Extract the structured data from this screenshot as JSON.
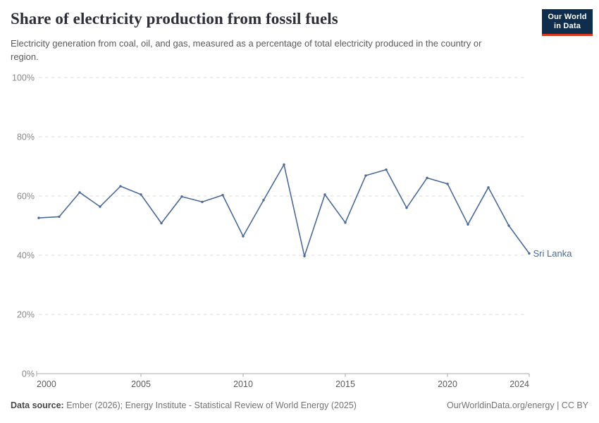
{
  "header": {
    "title": "Share of electricity production from fossil fuels",
    "subtitle": "Electricity generation from coal, oil, and gas, measured as a percentage of total electricity produced in the country or region."
  },
  "logo": {
    "line1": "Our World",
    "line2": "in Data",
    "bg_color": "#0f2d4d",
    "stripe_color": "#d8351e"
  },
  "chart_data": {
    "type": "line",
    "title": "Share of electricity production from fossil fuels",
    "xlabel": "",
    "ylabel": "",
    "xlim": [
      2000,
      2024
    ],
    "ylim": [
      0,
      100
    ],
    "x_ticks": [
      2000,
      2005,
      2010,
      2015,
      2020,
      2024
    ],
    "y_ticks": [
      0,
      20,
      40,
      60,
      80,
      100
    ],
    "y_tick_suffix": "%",
    "grid": "horizontal-dashed",
    "legend_position": "end-of-line-label",
    "series": [
      {
        "name": "Sri Lanka",
        "color": "#4C6A9C",
        "x": [
          2000,
          2001,
          2002,
          2003,
          2004,
          2005,
          2006,
          2007,
          2008,
          2009,
          2010,
          2011,
          2012,
          2013,
          2014,
          2015,
          2016,
          2017,
          2018,
          2019,
          2020,
          2021,
          2022,
          2023,
          2024
        ],
        "values": [
          52.6,
          53.0,
          61.2,
          56.4,
          63.3,
          60.5,
          50.8,
          59.8,
          58.0,
          60.3,
          46.4,
          58.6,
          70.6,
          39.7,
          60.5,
          51.0,
          66.9,
          68.9,
          56.0,
          66.1,
          64.1,
          50.4,
          62.9,
          50.0,
          40.6
        ]
      }
    ],
    "colors": {
      "gridline": "#dcdcdc",
      "axis": "#a8a8a8",
      "y_tick_label": "#8a8a8a",
      "x_tick_label": "#5c5c5c"
    }
  },
  "footer": {
    "source_label": "Data source:",
    "source_text": " Ember (2026); Energy Institute - Statistical Review of World Energy (2025)",
    "credit": "OurWorldinData.org/energy | CC BY"
  }
}
